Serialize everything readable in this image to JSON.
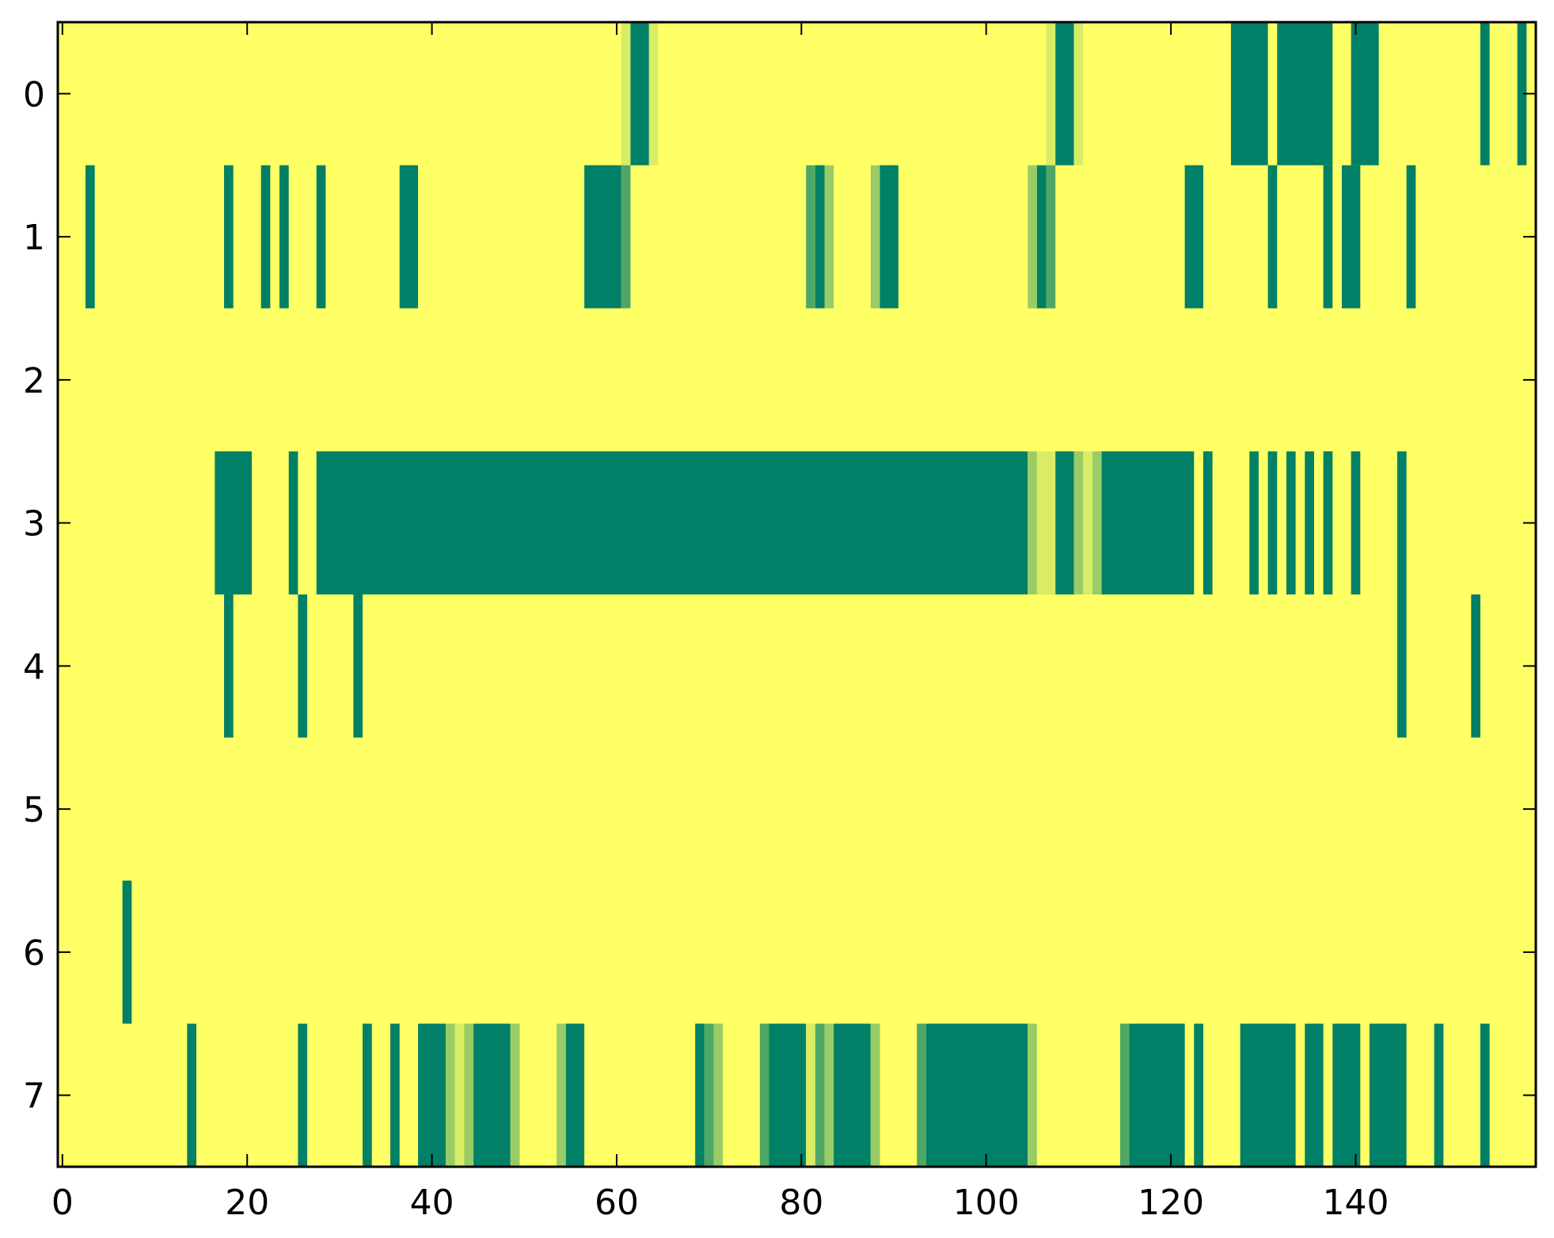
{
  "chart_data": {
    "type": "heatmap",
    "title": "",
    "xlabel": "",
    "ylabel": "",
    "xlim": [
      -0.5,
      159.5
    ],
    "ylim": [
      7.5,
      -0.5
    ],
    "x_ticks": [
      0,
      20,
      40,
      60,
      80,
      100,
      120,
      140
    ],
    "y_ticks": [
      0,
      1,
      2,
      3,
      4,
      5,
      6,
      7
    ],
    "x_tick_labels": [
      "0",
      "20",
      "40",
      "60",
      "80",
      "100",
      "120",
      "140"
    ],
    "y_tick_labels": [
      "0",
      "1",
      "2",
      "3",
      "4",
      "5",
      "6",
      "7"
    ],
    "grid": false,
    "colormap": "summer_r",
    "background_value": 0,
    "colors": {
      "low": "#ffff66",
      "mid_low": "#d9ec66",
      "mid": "#99cc66",
      "mid_high": "#4fa766",
      "high": "#008066"
    },
    "rows": [
      {
        "row": 0,
        "segments": [
          {
            "start": 61,
            "end": 61,
            "value": 0.25
          },
          {
            "start": 62,
            "end": 63,
            "value": 1
          },
          {
            "start": 64,
            "end": 64,
            "value": 0.25
          },
          {
            "start": 107,
            "end": 107,
            "value": 0.25
          },
          {
            "start": 108,
            "end": 109,
            "value": 1
          },
          {
            "start": 110,
            "end": 110,
            "value": 0.25
          },
          {
            "start": 127,
            "end": 130,
            "value": 1
          },
          {
            "start": 132,
            "end": 137,
            "value": 1
          },
          {
            "start": 140,
            "end": 142,
            "value": 1
          },
          {
            "start": 154,
            "end": 154,
            "value": 1
          },
          {
            "start": 158,
            "end": 158,
            "value": 1
          }
        ]
      },
      {
        "row": 1,
        "segments": [
          {
            "start": 3,
            "end": 3,
            "value": 1
          },
          {
            "start": 18,
            "end": 18,
            "value": 1
          },
          {
            "start": 22,
            "end": 22,
            "value": 1
          },
          {
            "start": 24,
            "end": 24,
            "value": 1
          },
          {
            "start": 28,
            "end": 28,
            "value": 1
          },
          {
            "start": 37,
            "end": 38,
            "value": 1
          },
          {
            "start": 57,
            "end": 60,
            "value": 1
          },
          {
            "start": 61,
            "end": 61,
            "value": 0.75
          },
          {
            "start": 81,
            "end": 81,
            "value": 0.75
          },
          {
            "start": 82,
            "end": 82,
            "value": 1
          },
          {
            "start": 83,
            "end": 83,
            "value": 0.5
          },
          {
            "start": 88,
            "end": 88,
            "value": 0.5
          },
          {
            "start": 89,
            "end": 90,
            "value": 1
          },
          {
            "start": 105,
            "end": 105,
            "value": 0.5
          },
          {
            "start": 106,
            "end": 106,
            "value": 1
          },
          {
            "start": 107,
            "end": 107,
            "value": 0.75
          },
          {
            "start": 122,
            "end": 123,
            "value": 1
          },
          {
            "start": 131,
            "end": 131,
            "value": 1
          },
          {
            "start": 137,
            "end": 137,
            "value": 1
          },
          {
            "start": 139,
            "end": 140,
            "value": 1
          },
          {
            "start": 146,
            "end": 146,
            "value": 1
          }
        ]
      },
      {
        "row": 2,
        "segments": []
      },
      {
        "row": 3,
        "segments": [
          {
            "start": 17,
            "end": 20,
            "value": 1
          },
          {
            "start": 25,
            "end": 25,
            "value": 1
          },
          {
            "start": 28,
            "end": 104,
            "value": 1
          },
          {
            "start": 105,
            "end": 105,
            "value": 0.5
          },
          {
            "start": 106,
            "end": 106,
            "value": 0.25
          },
          {
            "start": 107,
            "end": 107,
            "value": 0.25
          },
          {
            "start": 108,
            "end": 109,
            "value": 1
          },
          {
            "start": 110,
            "end": 110,
            "value": 0.5
          },
          {
            "start": 111,
            "end": 111,
            "value": 0.25
          },
          {
            "start": 112,
            "end": 112,
            "value": 0.5
          },
          {
            "start": 113,
            "end": 122,
            "value": 1
          },
          {
            "start": 124,
            "end": 124,
            "value": 1
          },
          {
            "start": 129,
            "end": 129,
            "value": 1
          },
          {
            "start": 131,
            "end": 131,
            "value": 1
          },
          {
            "start": 133,
            "end": 133,
            "value": 1
          },
          {
            "start": 135,
            "end": 135,
            "value": 1
          },
          {
            "start": 137,
            "end": 137,
            "value": 1
          },
          {
            "start": 140,
            "end": 140,
            "value": 1
          },
          {
            "start": 145,
            "end": 145,
            "value": 1
          }
        ]
      },
      {
        "row": 4,
        "segments": [
          {
            "start": 18,
            "end": 18,
            "value": 1
          },
          {
            "start": 26,
            "end": 26,
            "value": 1
          },
          {
            "start": 32,
            "end": 32,
            "value": 1
          },
          {
            "start": 145,
            "end": 145,
            "value": 1
          },
          {
            "start": 153,
            "end": 153,
            "value": 1
          }
        ]
      },
      {
        "row": 5,
        "segments": []
      },
      {
        "row": 6,
        "segments": [
          {
            "start": 7,
            "end": 7,
            "value": 1
          }
        ]
      },
      {
        "row": 7,
        "segments": [
          {
            "start": 14,
            "end": 14,
            "value": 1
          },
          {
            "start": 26,
            "end": 26,
            "value": 1
          },
          {
            "start": 33,
            "end": 33,
            "value": 1
          },
          {
            "start": 36,
            "end": 36,
            "value": 1
          },
          {
            "start": 39,
            "end": 41,
            "value": 1
          },
          {
            "start": 42,
            "end": 42,
            "value": 0.5
          },
          {
            "start": 43,
            "end": 43,
            "value": 0.25
          },
          {
            "start": 44,
            "end": 44,
            "value": 0.5
          },
          {
            "start": 45,
            "end": 48,
            "value": 1
          },
          {
            "start": 49,
            "end": 49,
            "value": 0.5
          },
          {
            "start": 54,
            "end": 54,
            "value": 0.5
          },
          {
            "start": 55,
            "end": 56,
            "value": 1
          },
          {
            "start": 69,
            "end": 69,
            "value": 1
          },
          {
            "start": 70,
            "end": 70,
            "value": 0.75
          },
          {
            "start": 71,
            "end": 71,
            "value": 0.5
          },
          {
            "start": 76,
            "end": 76,
            "value": 0.75
          },
          {
            "start": 77,
            "end": 80,
            "value": 1
          },
          {
            "start": 81,
            "end": 81,
            "value": 0.25
          },
          {
            "start": 82,
            "end": 82,
            "value": 0.75
          },
          {
            "start": 83,
            "end": 83,
            "value": 0.5
          },
          {
            "start": 84,
            "end": 87,
            "value": 1
          },
          {
            "start": 88,
            "end": 88,
            "value": 0.5
          },
          {
            "start": 93,
            "end": 93,
            "value": 0.75
          },
          {
            "start": 94,
            "end": 104,
            "value": 1
          },
          {
            "start": 105,
            "end": 105,
            "value": 0.5
          },
          {
            "start": 115,
            "end": 115,
            "value": 0.75
          },
          {
            "start": 116,
            "end": 121,
            "value": 1
          },
          {
            "start": 123,
            "end": 123,
            "value": 1
          },
          {
            "start": 128,
            "end": 133,
            "value": 1
          },
          {
            "start": 135,
            "end": 136,
            "value": 1
          },
          {
            "start": 138,
            "end": 140,
            "value": 1
          },
          {
            "start": 142,
            "end": 145,
            "value": 1
          },
          {
            "start": 149,
            "end": 149,
            "value": 1
          },
          {
            "start": 154,
            "end": 154,
            "value": 1
          }
        ]
      }
    ]
  }
}
